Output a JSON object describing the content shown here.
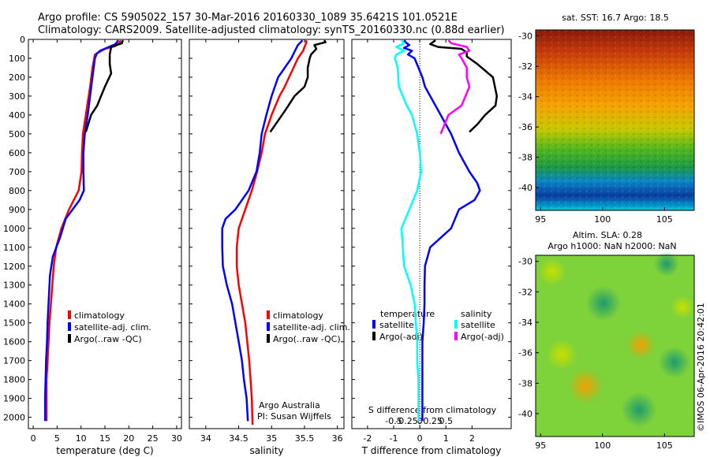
{
  "header": {
    "line1": "Argo profile: CS 5905022_157 30-Mar-2016 20160330_1089 35.6421S 101.0521E",
    "line2": "Climatology: CARS2009. Satellite-adjusted climatology: synTS_20160330.nc (0.88d earlier)"
  },
  "depth_ticks": [
    0,
    100,
    200,
    300,
    400,
    500,
    600,
    700,
    800,
    900,
    1000,
    1100,
    1200,
    1300,
    1400,
    1500,
    1600,
    1700,
    1800,
    1900,
    2000
  ],
  "colors": {
    "climatology": "#ff0000",
    "satellite": "#0000ff",
    "argo": "#000000",
    "cyan": "#00ffff",
    "magenta": "#ff00ff"
  },
  "chart_data": [
    {
      "type": "line",
      "xlabel": "temperature (deg C)",
      "xlim": [
        -1,
        31
      ],
      "ylim": [
        0,
        2060
      ],
      "xticks": [
        0,
        5,
        10,
        15,
        20,
        25,
        30
      ],
      "legend": {
        "entries": [
          "climatology",
          "satellite-adj. clim.",
          "Argo(..raw -QC)"
        ]
      },
      "series": [
        {
          "key": "clim",
          "color": "#ff0000",
          "points": [
            [
              18.3,
              5
            ],
            [
              18,
              20
            ],
            [
              17.2,
              35
            ],
            [
              15,
              50
            ],
            [
              12.9,
              80
            ],
            [
              12.4,
              150
            ],
            [
              11.9,
              250
            ],
            [
              11.6,
              300
            ],
            [
              11.0,
              400
            ],
            [
              10.4,
              500
            ],
            [
              10.2,
              600
            ],
            [
              10.1,
              700
            ],
            [
              9.5,
              800
            ],
            [
              7.5,
              900
            ],
            [
              5.9,
              1000
            ],
            [
              4.8,
              1100
            ],
            [
              4.3,
              1200
            ],
            [
              4,
              1300
            ],
            [
              3.7,
              1400
            ],
            [
              3.4,
              1500
            ],
            [
              3.2,
              1600
            ],
            [
              3.0,
              1700
            ],
            [
              2.8,
              1800
            ],
            [
              2.8,
              1900
            ],
            [
              2.8,
              2020
            ]
          ]
        },
        {
          "key": "sat",
          "color": "#0000ff",
          "points": [
            [
              17.8,
              5
            ],
            [
              17.2,
              25
            ],
            [
              14,
              60
            ],
            [
              13.3,
              75
            ],
            [
              12.9,
              100
            ],
            [
              12.4,
              200
            ],
            [
              11.9,
              300
            ],
            [
              11.4,
              400
            ],
            [
              10.8,
              500
            ],
            [
              10.5,
              600
            ],
            [
              10.5,
              700
            ],
            [
              10.6,
              800
            ],
            [
              9.7,
              850
            ],
            [
              6.8,
              950
            ],
            [
              5.6,
              1050
            ],
            [
              4.1,
              1150
            ],
            [
              3.5,
              1250
            ],
            [
              3.2,
              1400
            ],
            [
              3,
              1500
            ],
            [
              2.9,
              1600
            ],
            [
              2.7,
              1700
            ],
            [
              2.6,
              1800
            ],
            [
              2.5,
              1900
            ],
            [
              2.5,
              2020
            ]
          ]
        },
        {
          "key": "argo",
          "color": "#000000",
          "points": [
            [
              18.8,
              5
            ],
            [
              18.6,
              15
            ],
            [
              18.6,
              20
            ],
            [
              16.3,
              40
            ],
            [
              16,
              80
            ],
            [
              16,
              130
            ],
            [
              16.3,
              180
            ],
            [
              15,
              250
            ],
            [
              14.2,
              300
            ],
            [
              13.4,
              350
            ],
            [
              12.1,
              400
            ],
            [
              11.5,
              450
            ],
            [
              11,
              490
            ]
          ]
        }
      ]
    },
    {
      "type": "line",
      "xlabel": "salinity",
      "xlim": [
        33.75,
        36.1
      ],
      "ylim": [
        0,
        2060
      ],
      "xticks": [
        34,
        34.5,
        35,
        35.5,
        36
      ],
      "legend": {
        "entries": [
          "climatology",
          "satellite-adj. clim.",
          "Argo(..raw -QC)"
        ]
      },
      "annotations": [
        "Argo Australia",
        "PI: Susan Wijffels"
      ],
      "series": [
        {
          "key": "clim",
          "color": "#ff0000",
          "points": [
            [
              35.52,
              5
            ],
            [
              35.53,
              15
            ],
            [
              35.5,
              40
            ],
            [
              35.48,
              60
            ],
            [
              35.4,
              100
            ],
            [
              35.2,
              250
            ],
            [
              35.12,
              300
            ],
            [
              35.0,
              400
            ],
            [
              34.9,
              500
            ],
            [
              34.85,
              600
            ],
            [
              34.78,
              700
            ],
            [
              34.7,
              800
            ],
            [
              34.6,
              900
            ],
            [
              34.5,
              1000
            ],
            [
              34.47,
              1100
            ],
            [
              34.47,
              1200
            ],
            [
              34.5,
              1300
            ],
            [
              34.55,
              1400
            ],
            [
              34.6,
              1500
            ],
            [
              34.63,
              1600
            ],
            [
              34.66,
              1700
            ],
            [
              34.68,
              1800
            ],
            [
              34.7,
              1900
            ],
            [
              34.71,
              2040
            ]
          ]
        },
        {
          "key": "sat",
          "color": "#0000ff",
          "points": [
            [
              35.47,
              5
            ],
            [
              35.4,
              30
            ],
            [
              35.35,
              65
            ],
            [
              35.3,
              100
            ],
            [
              35.1,
              200
            ],
            [
              35.0,
              300
            ],
            [
              34.92,
              400
            ],
            [
              34.85,
              500
            ],
            [
              34.82,
              600
            ],
            [
              34.77,
              700
            ],
            [
              34.65,
              800
            ],
            [
              34.45,
              900
            ],
            [
              34.3,
              950
            ],
            [
              34.25,
              1000
            ],
            [
              34.25,
              1100
            ],
            [
              34.26,
              1200
            ],
            [
              34.32,
              1300
            ],
            [
              34.4,
              1400
            ],
            [
              34.45,
              1500
            ],
            [
              34.5,
              1600
            ],
            [
              34.55,
              1700
            ],
            [
              34.58,
              1800
            ],
            [
              34.62,
              1900
            ],
            [
              34.64,
              2020
            ]
          ]
        },
        {
          "key": "argo",
          "color": "#000000",
          "points": [
            [
              35.8,
              5
            ],
            [
              35.82,
              15
            ],
            [
              35.65,
              30
            ],
            [
              35.68,
              50
            ],
            [
              35.6,
              80
            ],
            [
              35.58,
              100
            ],
            [
              35.55,
              150
            ],
            [
              35.55,
              200
            ],
            [
              35.5,
              250
            ],
            [
              35.35,
              300
            ],
            [
              35.2,
              380
            ],
            [
              35.1,
              430
            ],
            [
              34.98,
              490
            ]
          ]
        }
      ]
    },
    {
      "type": "line",
      "xlabel": "T difference from climatology",
      "xlabel_top": "S difference from climatology",
      "xlim": [
        -2.6,
        3.5
      ],
      "ylim": [
        0,
        2060
      ],
      "xticks": [
        -2,
        -1,
        0,
        1,
        2
      ],
      "top_ticks": [
        {
          "label": "-0.5",
          "v": -1.0
        },
        {
          "label": "-0.25",
          "v": -0.5
        },
        {
          "label": "0",
          "v": 0
        },
        {
          "label": "0.25",
          "v": 0.5
        },
        {
          "label": "0.5",
          "v": 1.0
        }
      ],
      "legend": {
        "col1_title": "temperature",
        "col2_title": "salinity",
        "entries": [
          "satellite",
          "Argo(-adj)",
          "satellite",
          "Argo(-adj)"
        ]
      },
      "series": [
        {
          "key": "t_sat",
          "color": "#0000ff",
          "points": [
            [
              -0.6,
              5
            ],
            [
              -0.5,
              20
            ],
            [
              -0.4,
              30
            ],
            [
              -0.6,
              45
            ],
            [
              -0.3,
              60
            ],
            [
              -0.45,
              80
            ],
            [
              -0.2,
              100
            ],
            [
              0.1,
              200
            ],
            [
              0.2,
              250
            ],
            [
              0.4,
              300
            ],
            [
              0.8,
              400
            ],
            [
              1.2,
              500
            ],
            [
              1.5,
              600
            ],
            [
              1.9,
              700
            ],
            [
              2.2,
              760
            ],
            [
              2.3,
              800
            ],
            [
              2.1,
              850
            ],
            [
              1.5,
              900
            ],
            [
              1.2,
              1000
            ],
            [
              0.4,
              1100
            ],
            [
              0.2,
              1200
            ],
            [
              0.18,
              1300
            ],
            [
              0.18,
              1400
            ],
            [
              0.15,
              1500
            ],
            [
              0.1,
              1600
            ],
            [
              0.1,
              1700
            ],
            [
              0.1,
              1800
            ],
            [
              0.1,
              1900
            ],
            [
              0.1,
              2020
            ]
          ]
        },
        {
          "key": "t_argo",
          "color": "#000000",
          "points": [
            [
              0.6,
              5
            ],
            [
              0.4,
              25
            ],
            [
              0.7,
              40
            ],
            [
              1.6,
              50
            ],
            [
              1.8,
              70
            ],
            [
              1.8,
              90
            ],
            [
              2.2,
              130
            ],
            [
              2.8,
              200
            ],
            [
              2.95,
              300
            ],
            [
              2.9,
              350
            ],
            [
              2.5,
              400
            ],
            [
              2.2,
              450
            ],
            [
              1.9,
              490
            ]
          ]
        },
        {
          "key": "s_sat",
          "color": "#00ffff",
          "points": [
            [
              -0.7,
              5
            ],
            [
              -0.6,
              20
            ],
            [
              -0.9,
              40
            ],
            [
              -0.6,
              60
            ],
            [
              -0.9,
              80
            ],
            [
              -0.95,
              100
            ],
            [
              -0.85,
              150
            ],
            [
              -0.8,
              250
            ],
            [
              -0.5,
              350
            ],
            [
              -0.3,
              400
            ],
            [
              -0.1,
              500
            ],
            [
              0,
              600
            ],
            [
              0.05,
              700
            ],
            [
              -0.1,
              800
            ],
            [
              -0.4,
              900
            ],
            [
              -0.7,
              1000
            ],
            [
              -0.65,
              1100
            ],
            [
              -0.6,
              1200
            ],
            [
              -0.35,
              1300
            ],
            [
              -0.2,
              1400
            ],
            [
              -0.15,
              1500
            ],
            [
              -0.1,
              1600
            ],
            [
              -0.1,
              1700
            ],
            [
              -0.05,
              1800
            ],
            [
              -0.05,
              1900
            ],
            [
              -0.05,
              2020
            ]
          ]
        },
        {
          "key": "s_argo",
          "color": "#ff00ff",
          "points": [
            [
              1.1,
              5
            ],
            [
              1.2,
              20
            ],
            [
              1.8,
              40
            ],
            [
              1.9,
              60
            ],
            [
              1.5,
              80
            ],
            [
              1.6,
              100
            ],
            [
              1.8,
              150
            ],
            [
              1.8,
              200
            ],
            [
              1.9,
              250
            ],
            [
              1.6,
              350
            ],
            [
              1.1,
              400
            ],
            [
              0.8,
              500
            ]
          ]
        }
      ]
    }
  ],
  "maps": {
    "sst": {
      "title": "sat. SST: 16.7 Argo: 18.5",
      "lon_ticks": [
        95,
        100,
        105
      ],
      "lat_ticks": [
        -30,
        -32,
        -34,
        -36,
        -38,
        -40
      ]
    },
    "sla": {
      "title1": "Altim. SLA: 0.28",
      "title2": "Argo h1000: NaN h2000: NaN",
      "lon_ticks": [
        95,
        100,
        105
      ],
      "lat_ticks": [
        -30,
        -32,
        -34,
        -36,
        -38,
        -40
      ]
    }
  },
  "credit": "©IMOS 06-Apr-2016 20:42:01"
}
